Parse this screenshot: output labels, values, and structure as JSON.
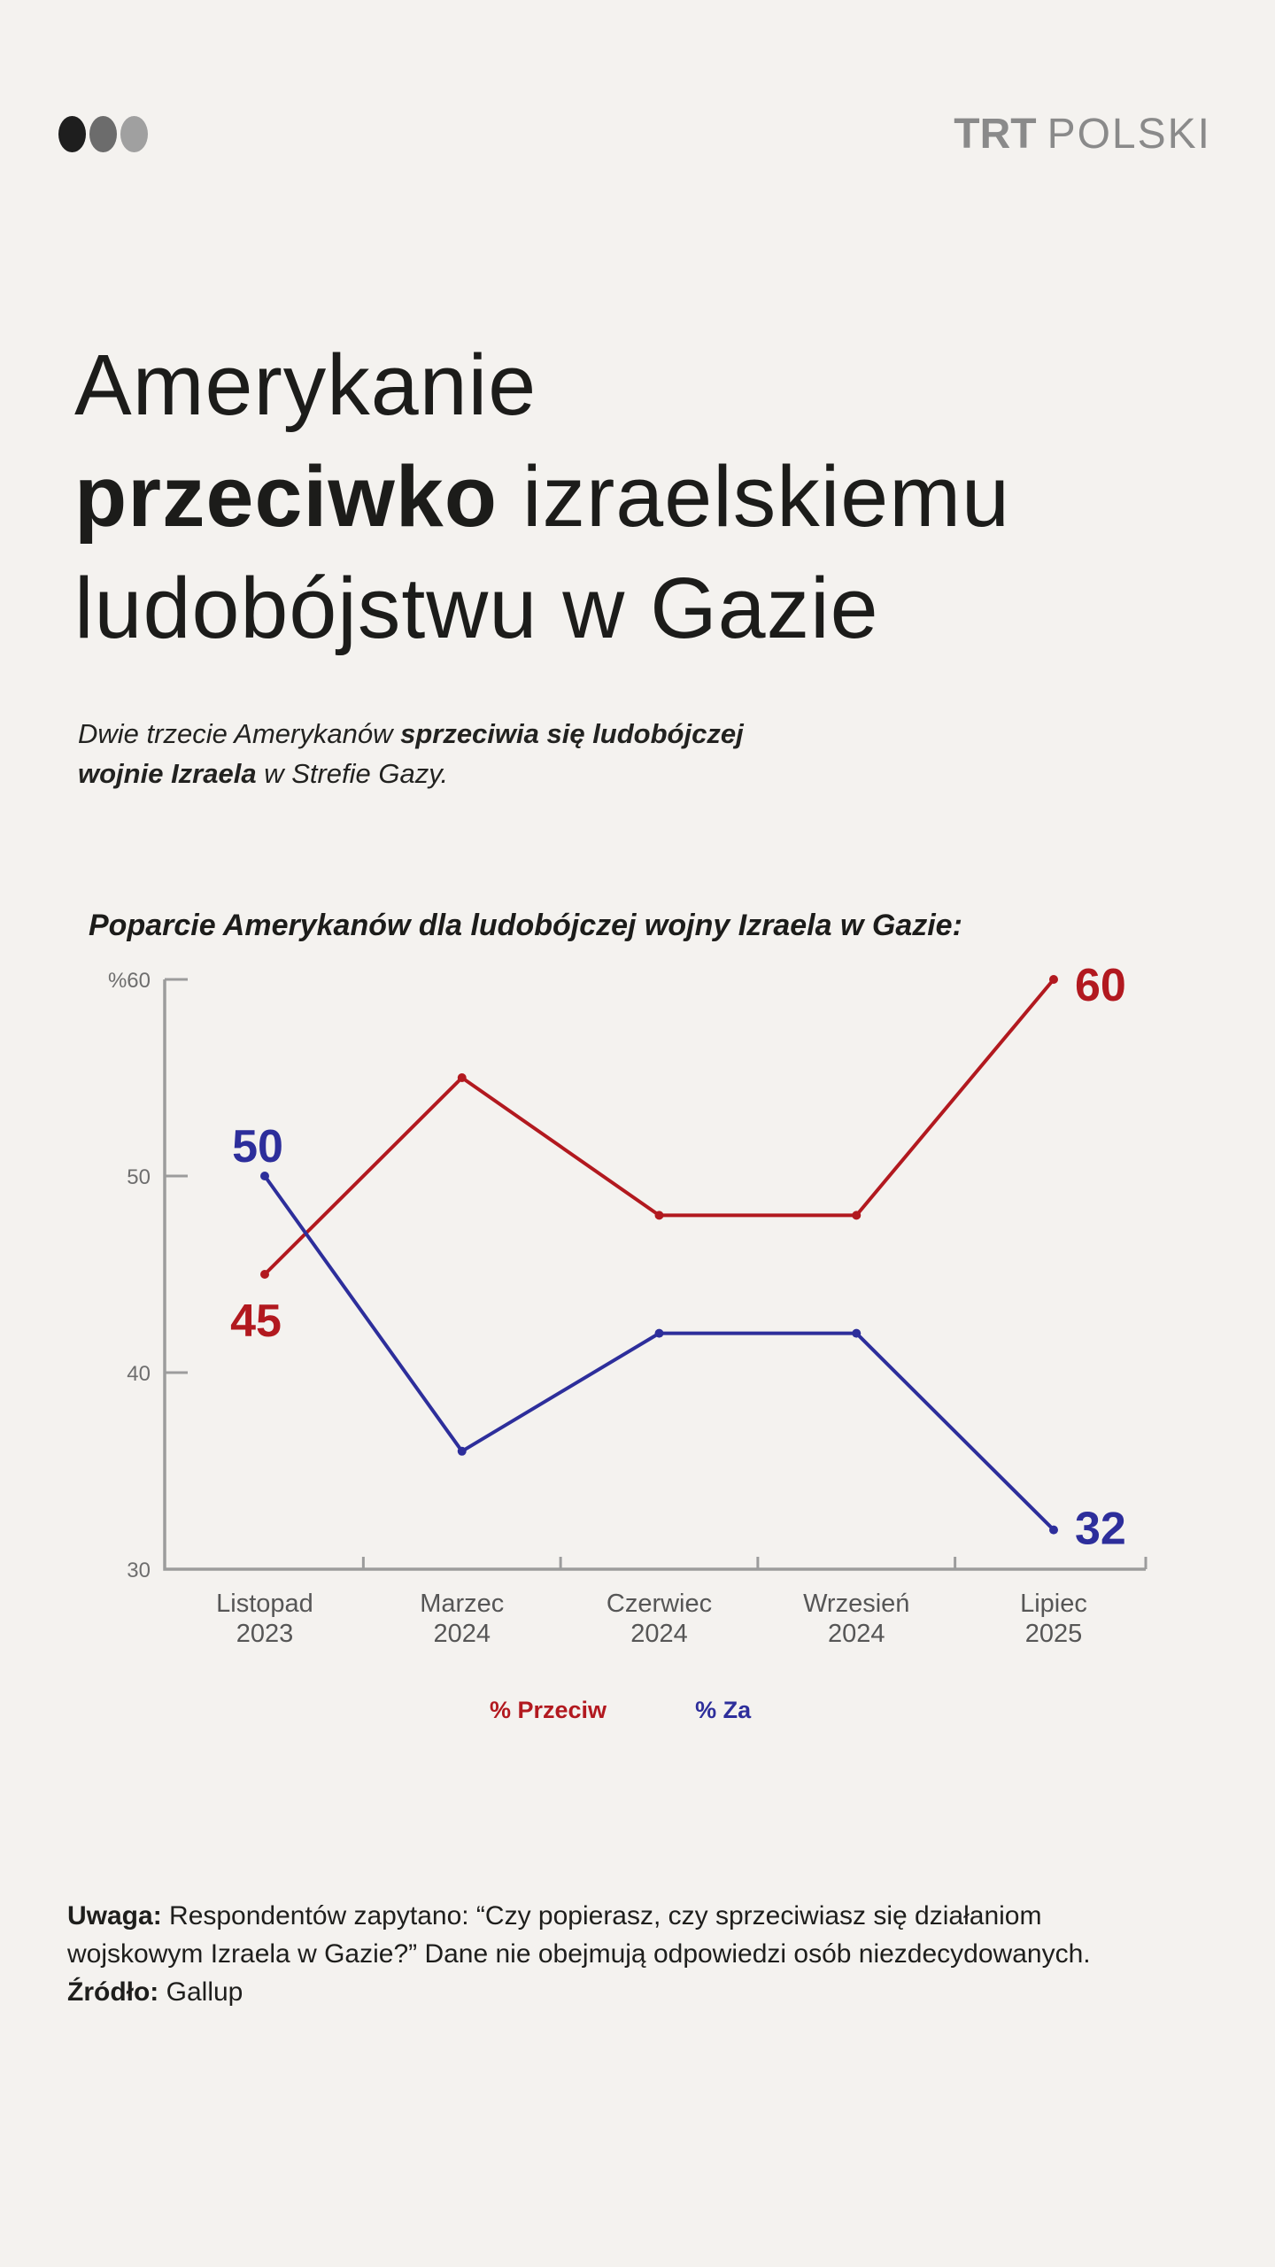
{
  "page": {
    "background": "#f4f2ef",
    "text_color": "#1c1c1a"
  },
  "header": {
    "dot_colors": [
      "#1e1e1e",
      "#6c6c6c",
      "#a0a0a0"
    ],
    "logo_bold": "TRT",
    "logo_light": "POLSKI",
    "logo_color": "#8a8a8a"
  },
  "title": {
    "line1": "Amerykanie",
    "line2_bold": "przeciwko",
    "line2_rest": " izraelskiemu",
    "line3": "ludobójstwu w Gazie"
  },
  "subtitle": {
    "line1_normal": "Dwie trzecie Amerykanów ",
    "line1_bold": "sprzeciwia się ludobójczej",
    "line2_bold": "wojnie Izraela",
    "line2_normal": " w Strefie Gazy."
  },
  "chart_data": {
    "type": "line",
    "title": "Poparcie Amerykanów dla ludobójczej wojny Izraela w Gazie:",
    "categories": [
      [
        "Listopad",
        "2023"
      ],
      [
        "Marzec",
        "2024"
      ],
      [
        "Czerwiec",
        "2024"
      ],
      [
        "Wrzesień",
        "2024"
      ],
      [
        "Lipiec",
        "2025"
      ]
    ],
    "series": [
      {
        "name": "% Przeciw",
        "color": "#b2191f",
        "values": [
          45,
          55,
          48,
          48,
          60
        ]
      },
      {
        "name": "% Za",
        "color": "#2d2e9b",
        "values": [
          50,
          36,
          42,
          42,
          32
        ]
      }
    ],
    "ylim": [
      30,
      60
    ],
    "yticks": [
      30,
      40,
      50,
      60
    ],
    "ytick_labels": [
      "30",
      "40",
      "50",
      "%60"
    ],
    "grid": false,
    "legend_position": "bottom",
    "axis_color": "#9c9c9c",
    "tick_label_color": "#6e6e6e",
    "category_label_color": "#565656"
  },
  "footer": {
    "note_label": "Uwaga:",
    "note_line1": " Respondentów zapytano: “Czy popierasz, czy sprzeciwiasz się działaniom",
    "note_line2": "wojskowym Izraela w Gazie?” Dane nie obejmują odpowiedzi osób niezdecydowanych.",
    "source_label": "Źródło:",
    "source_text": " Gallup"
  }
}
